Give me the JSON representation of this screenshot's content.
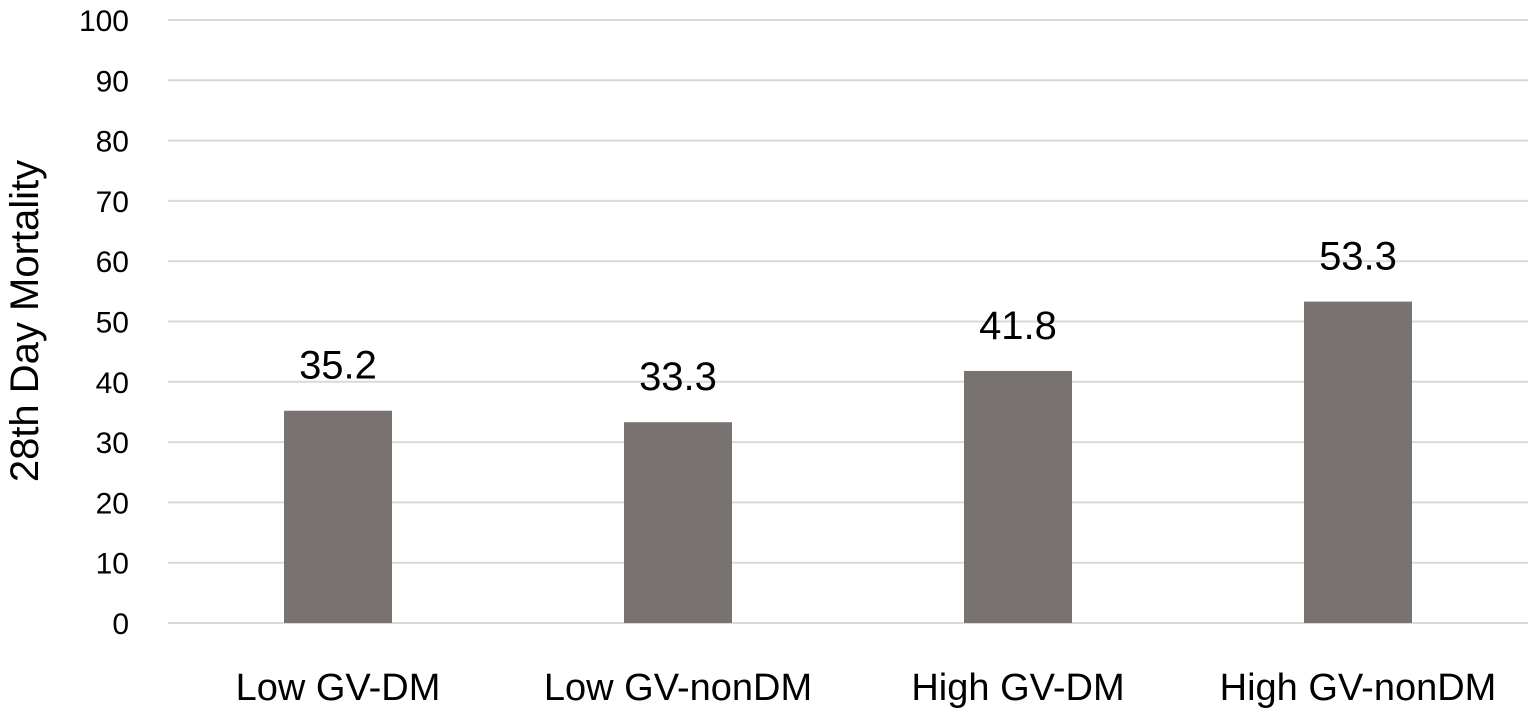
{
  "chart_data": {
    "type": "bar",
    "title": "",
    "xlabel": "",
    "ylabel": "28th Day Mortality",
    "ylim": [
      0,
      100
    ],
    "yticks": [
      0,
      10,
      20,
      30,
      40,
      50,
      60,
      70,
      80,
      90,
      100
    ],
    "categories": [
      "Low GV-DM",
      "Low GV-nonDM",
      "High GV-DM",
      "High GV-nonDM"
    ],
    "series": [
      {
        "values": [
          35.2,
          33.3,
          41.8,
          53.3
        ],
        "data_labels": [
          "35.2",
          "33.3",
          "41.8",
          "53.3"
        ]
      }
    ],
    "bar_color": "#787271",
    "grid": true,
    "legend": "none"
  }
}
